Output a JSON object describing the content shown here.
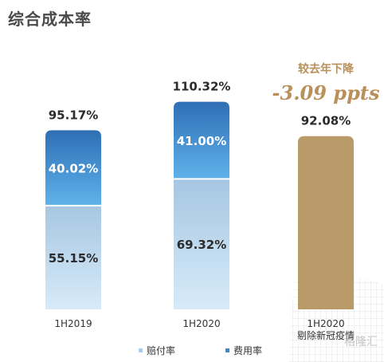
{
  "title": "综合成本率",
  "chart_data": {
    "type": "bar",
    "stacked": true,
    "categories": [
      "1H2019",
      "1H2020",
      "1H2020 剔除新冠疫情"
    ],
    "series": [
      {
        "name": "赔付率",
        "values": [
          55.15,
          69.32,
          null
        ],
        "color": "#b9d5ee"
      },
      {
        "name": "费用率",
        "values": [
          40.02,
          41.0,
          null
        ],
        "color": "#3d86cc"
      },
      {
        "name": "",
        "values": [
          null,
          null,
          92.08
        ],
        "color": "#b99a69"
      }
    ],
    "totals": [
      "95.17%",
      "110.32%",
      "92.08%"
    ],
    "segment_labels": [
      [
        "55.15%",
        "40.02%"
      ],
      [
        "69.32%",
        "41.00%"
      ]
    ],
    "category_labels": [
      "1H2019",
      "1H2020",
      "1H2020\n剔除新冠疫情"
    ],
    "annotation": {
      "line1": "较去年下降",
      "line2": "-3.09 ppts",
      "color": "#b9905a"
    },
    "ylim": [
      0,
      115
    ],
    "legend_position": "bottom"
  },
  "legend": [
    {
      "label": "赔付率",
      "color": "#a9cbe9"
    },
    {
      "label": "费用率",
      "color": "#3d86cc"
    }
  ],
  "watermark": "格隆汇"
}
